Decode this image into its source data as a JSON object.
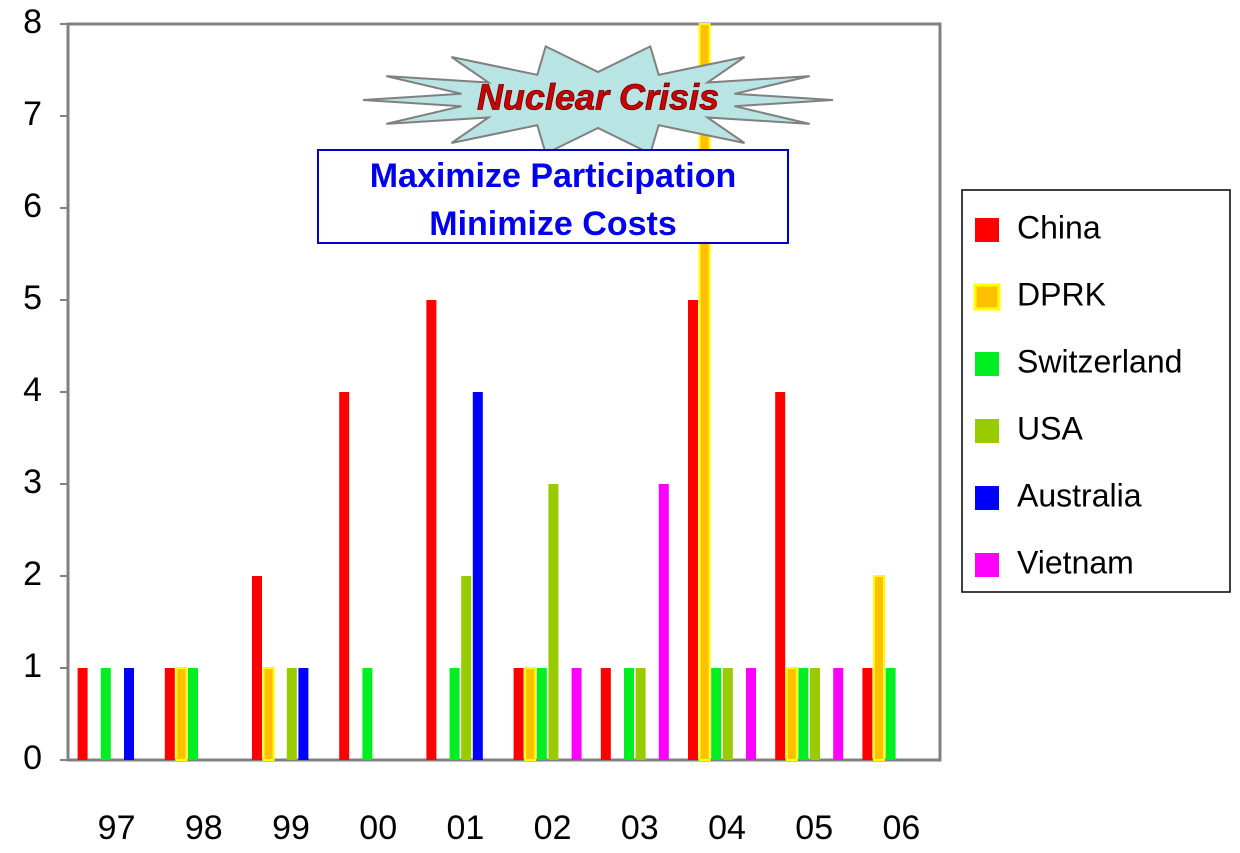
{
  "chart_data": {
    "type": "bar",
    "annotations": [
      "Nuclear Crisis",
      "Maximize Participation",
      "Minimize Costs"
    ],
    "categories": [
      "97",
      "98",
      "99",
      "00",
      "01",
      "02",
      "03",
      "04",
      "05",
      "06"
    ],
    "series": [
      {
        "name": "China",
        "color": "#ff0000",
        "values": [
          1,
          1,
          2,
          4,
          5,
          1,
          1,
          5,
          4,
          1
        ]
      },
      {
        "name": "DPRK",
        "color": "#ffc000",
        "values": [
          0,
          1,
          1,
          0,
          0,
          1,
          0,
          8,
          1,
          2
        ]
      },
      {
        "name": "Switzerland",
        "color": "#00ee22",
        "values": [
          1,
          1,
          0,
          1,
          1,
          1,
          1,
          1,
          1,
          1
        ]
      },
      {
        "name": "USA",
        "color": "#99cc00",
        "values": [
          0,
          0,
          1,
          0,
          2,
          3,
          1,
          1,
          1,
          0
        ]
      },
      {
        "name": "Australia",
        "color": "#0000ff",
        "values": [
          1,
          0,
          1,
          0,
          4,
          0,
          0,
          0,
          0,
          0
        ]
      },
      {
        "name": "Vietnam",
        "color": "#ff00ff",
        "values": [
          0,
          0,
          0,
          0,
          0,
          1,
          3,
          1,
          1,
          0
        ]
      }
    ],
    "ylim": [
      0,
      8
    ],
    "yticks": [
      0,
      1,
      2,
      3,
      4,
      5,
      6,
      7,
      8
    ],
    "grid": false,
    "legend": "right"
  }
}
